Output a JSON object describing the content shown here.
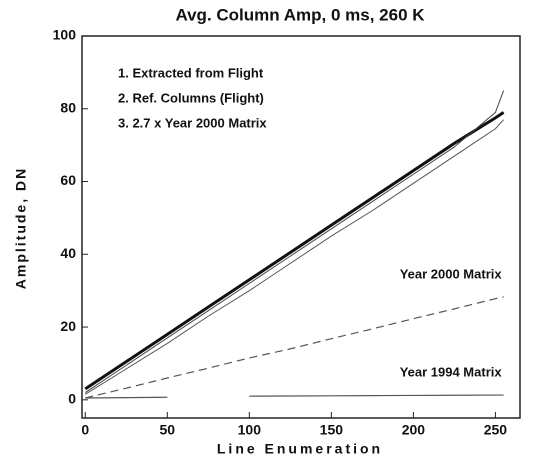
{
  "chart_data": {
    "type": "line",
    "title": "Avg. Column Amp, 0 ms, 260 K",
    "x_label": "Line Enumeration",
    "y_label": "Amplitude, DN",
    "x": [
      0,
      25,
      50,
      75,
      100,
      125,
      150,
      175,
      200,
      225,
      250,
      255
    ],
    "series": [
      {
        "name": "1. Extracted from Flight",
        "color": "#111111",
        "width": 3,
        "dash": "none",
        "label": "legend",
        "values": [
          3,
          10.5,
          18,
          25.5,
          33,
          40.5,
          48,
          55.5,
          63,
          70.5,
          77.5,
          79
        ]
      },
      {
        "name": "2. Ref. Columns (Flight)",
        "color": "#444444",
        "width": 1,
        "dash": "none",
        "label": "legend",
        "values": [
          2,
          9.5,
          17,
          24.5,
          32,
          39.5,
          47,
          54.5,
          62,
          69.5,
          79,
          85
        ]
      },
      {
        "name": "3. 2.7 x Year 2000 Matrix",
        "color": "#555555",
        "width": 1,
        "dash": "none",
        "label": "legend",
        "values": [
          1.5,
          8.5,
          15.5,
          23,
          30,
          37.5,
          45,
          52,
          59.5,
          67,
          74.5,
          77
        ]
      },
      {
        "name": "Year 2000 Matrix",
        "color": "#555555",
        "width": 1.2,
        "dash": "8 5",
        "label": "line",
        "values": [
          0.5,
          3.2,
          6,
          8.7,
          11.5,
          14,
          16.8,
          19.5,
          22.3,
          25,
          27.8,
          28.3
        ]
      },
      {
        "name": "Year 1994 Matrix",
        "color": "#555555",
        "width": 1.2,
        "dash": "none",
        "label": "line",
        "values": [
          0.5,
          0.6,
          0.7,
          null,
          1.0,
          1.05,
          1.1,
          1.15,
          1.2,
          1.25,
          1.3,
          1.3
        ]
      }
    ],
    "xlim": [
      -2,
      265
    ],
    "ylim": [
      -5,
      100
    ],
    "xticks": [
      0,
      50,
      100,
      150,
      200,
      250
    ],
    "yticks": [
      0,
      20,
      40,
      60,
      80,
      100
    ]
  }
}
